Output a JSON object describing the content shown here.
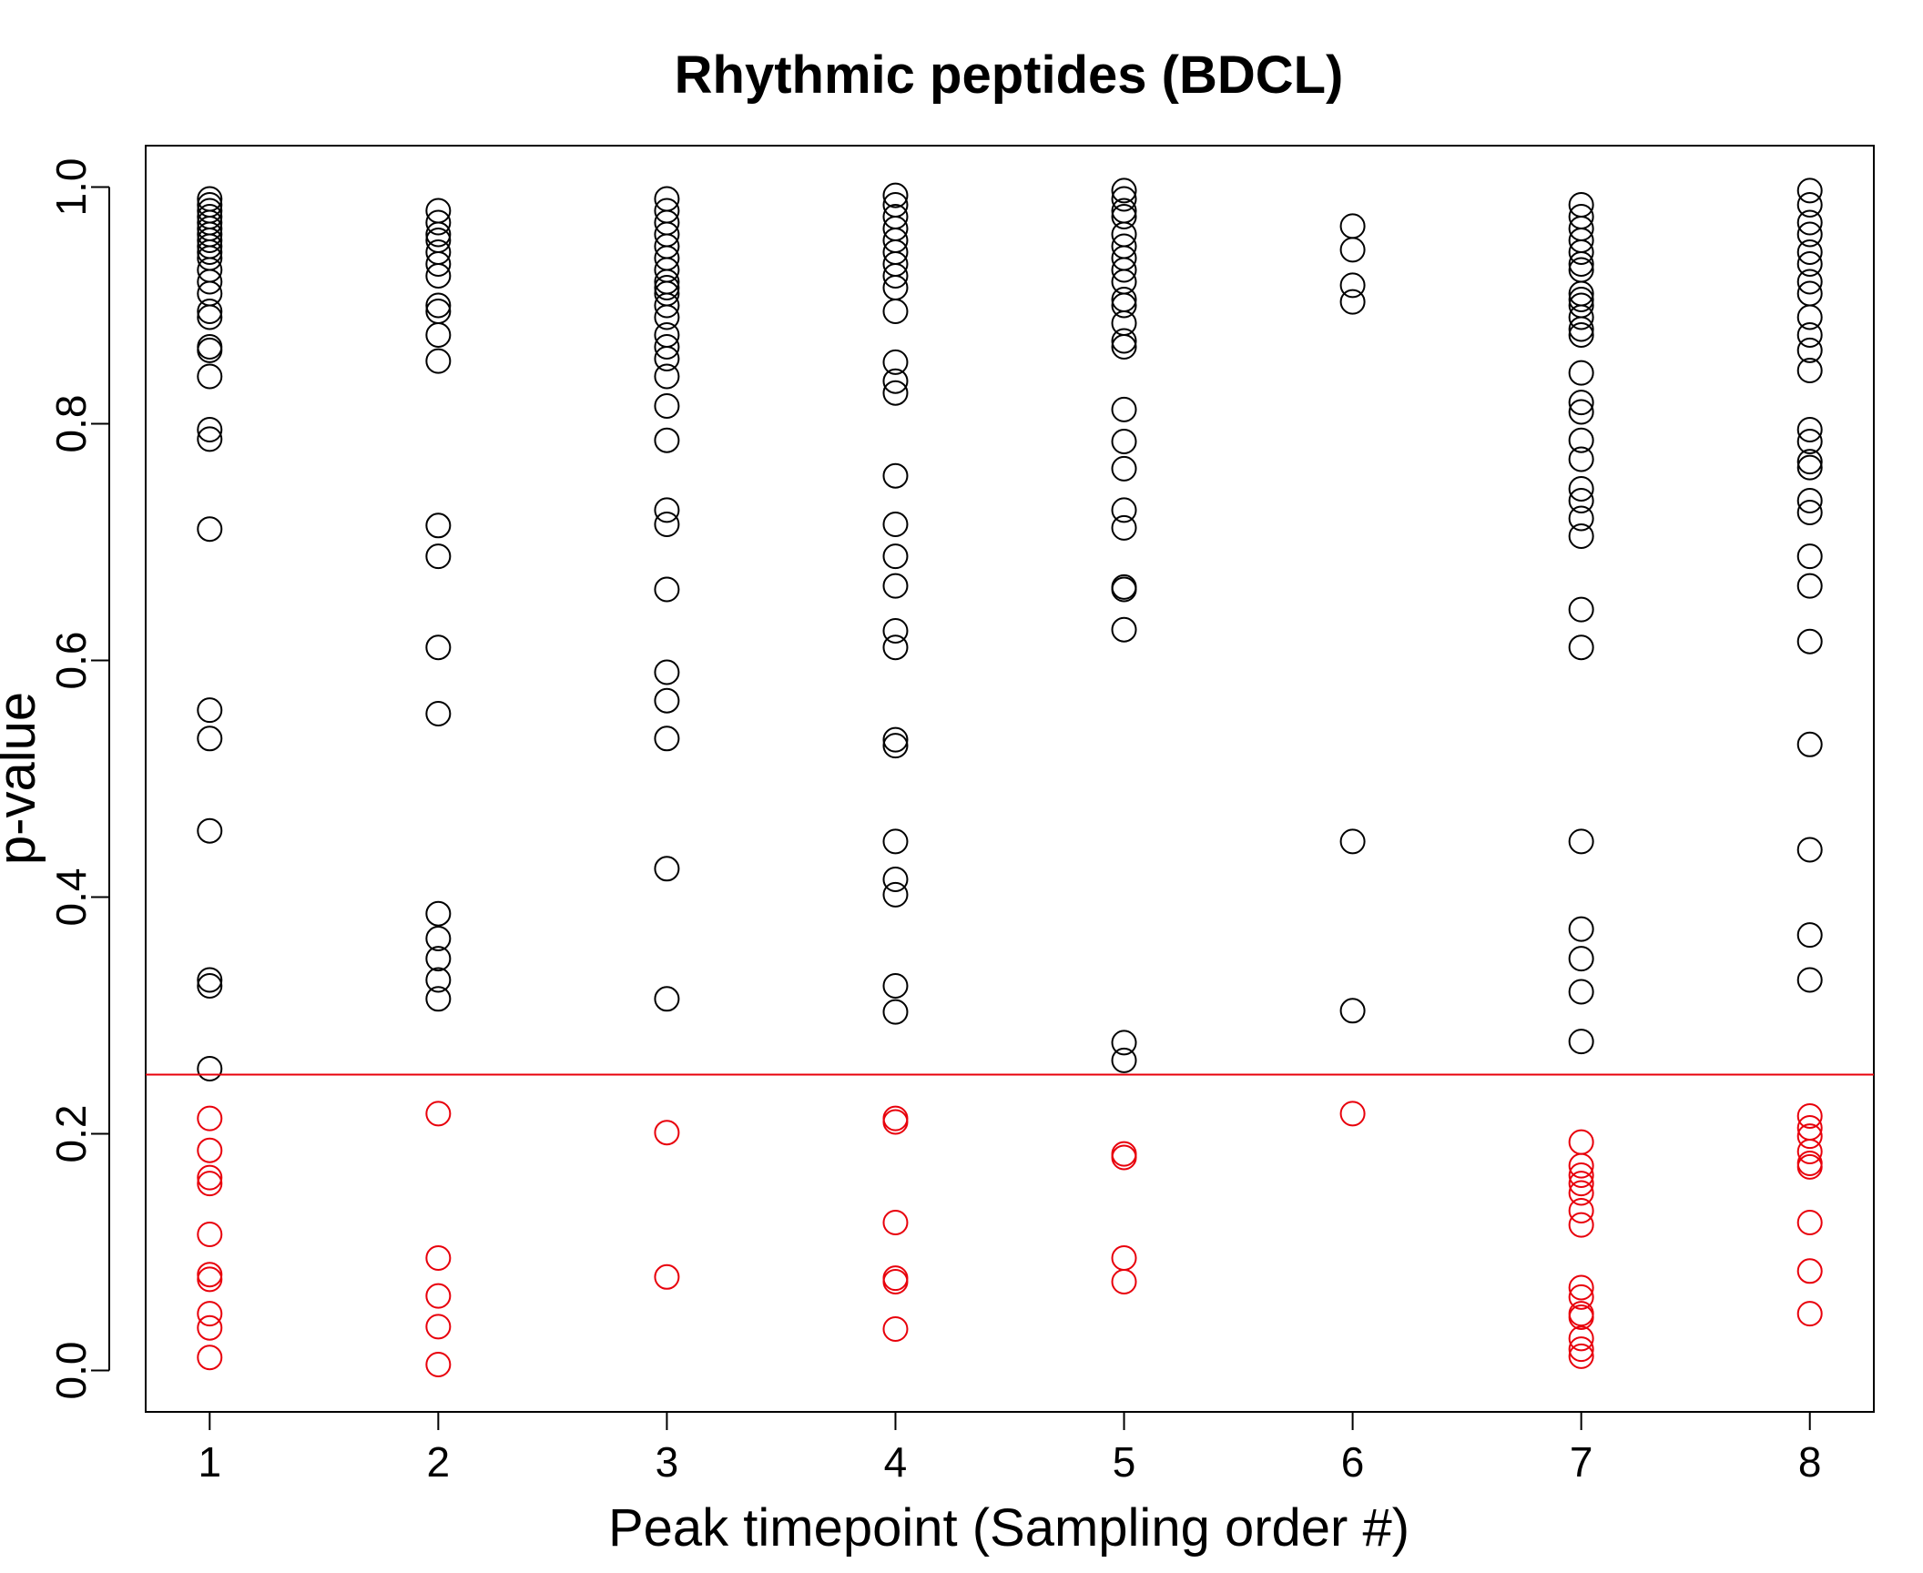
{
  "chart_data": {
    "type": "scatter",
    "title": "Rhythmic peptides (BDCL)",
    "xlabel": "Peak timepoint (Sampling order #)",
    "ylabel": "p-value",
    "xlim": [
      0.72,
      8.28
    ],
    "ylim": [
      -0.035,
      1.035
    ],
    "x_ticks": [
      "1",
      "2",
      "3",
      "4",
      "5",
      "6",
      "7",
      "8"
    ],
    "y_ticks": [
      "0.0",
      "0.2",
      "0.4",
      "0.6",
      "0.8",
      "1.0"
    ],
    "threshold": 0.25,
    "colors": {
      "above_threshold": "#000000",
      "below_threshold": "#e8000b",
      "threshold_line": "#e8000b",
      "axes": "#000000"
    },
    "series": [
      {
        "x": 1,
        "values": [
          0.99,
          0.985,
          0.98,
          0.975,
          0.97,
          0.965,
          0.96,
          0.955,
          0.95,
          0.945,
          0.94,
          0.93,
          0.92,
          0.91,
          0.895,
          0.89,
          0.865,
          0.862,
          0.84,
          0.795,
          0.787,
          0.711,
          0.558,
          0.534,
          0.456,
          0.33,
          0.325,
          0.255,
          0.213,
          0.186,
          0.163,
          0.158,
          0.115,
          0.081,
          0.077,
          0.048,
          0.036,
          0.011
        ]
      },
      {
        "x": 2,
        "values": [
          0.98,
          0.97,
          0.96,
          0.955,
          0.945,
          0.935,
          0.925,
          0.9,
          0.895,
          0.875,
          0.853,
          0.714,
          0.688,
          0.611,
          0.555,
          0.386,
          0.365,
          0.348,
          0.33,
          0.314,
          0.217,
          0.095,
          0.063,
          0.037,
          0.005
        ]
      },
      {
        "x": 3,
        "values": [
          0.99,
          0.98,
          0.97,
          0.96,
          0.95,
          0.94,
          0.93,
          0.92,
          0.915,
          0.91,
          0.9,
          0.89,
          0.875,
          0.865,
          0.855,
          0.84,
          0.815,
          0.786,
          0.727,
          0.715,
          0.66,
          0.59,
          0.566,
          0.534,
          0.424,
          0.314,
          0.201,
          0.079
        ]
      },
      {
        "x": 4,
        "values": [
          0.993,
          0.985,
          0.975,
          0.965,
          0.955,
          0.945,
          0.935,
          0.925,
          0.915,
          0.895,
          0.852,
          0.836,
          0.826,
          0.756,
          0.715,
          0.688,
          0.663,
          0.625,
          0.611,
          0.533,
          0.528,
          0.447,
          0.415,
          0.402,
          0.325,
          0.303,
          0.213,
          0.21,
          0.125,
          0.078,
          0.075,
          0.035
        ]
      },
      {
        "x": 5,
        "values": [
          0.997,
          0.99,
          0.98,
          0.975,
          0.96,
          0.95,
          0.94,
          0.93,
          0.92,
          0.905,
          0.9,
          0.885,
          0.87,
          0.865,
          0.812,
          0.785,
          0.762,
          0.727,
          0.712,
          0.662,
          0.66,
          0.626,
          0.277,
          0.262,
          0.183,
          0.18,
          0.095,
          0.075
        ]
      },
      {
        "x": 6,
        "values": [
          0.967,
          0.947,
          0.917,
          0.903,
          0.447,
          0.304,
          0.217
        ]
      },
      {
        "x": 7,
        "values": [
          0.985,
          0.975,
          0.965,
          0.955,
          0.945,
          0.935,
          0.93,
          0.91,
          0.905,
          0.9,
          0.89,
          0.88,
          0.875,
          0.843,
          0.818,
          0.81,
          0.786,
          0.77,
          0.745,
          0.735,
          0.72,
          0.705,
          0.643,
          0.611,
          0.447,
          0.373,
          0.348,
          0.32,
          0.278,
          0.193,
          0.173,
          0.165,
          0.158,
          0.15,
          0.135,
          0.123,
          0.07,
          0.062,
          0.048,
          0.045,
          0.027,
          0.018,
          0.012
        ]
      },
      {
        "x": 8,
        "values": [
          0.997,
          0.985,
          0.97,
          0.96,
          0.945,
          0.935,
          0.92,
          0.91,
          0.89,
          0.875,
          0.862,
          0.845,
          0.795,
          0.785,
          0.768,
          0.763,
          0.735,
          0.725,
          0.688,
          0.663,
          0.616,
          0.529,
          0.44,
          0.368,
          0.33,
          0.215,
          0.205,
          0.198,
          0.185,
          0.175,
          0.172,
          0.125,
          0.084,
          0.048
        ]
      }
    ]
  }
}
